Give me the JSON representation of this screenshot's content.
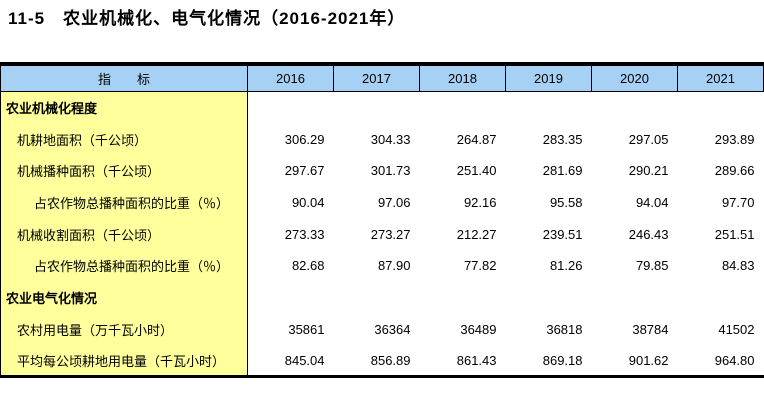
{
  "title": "11-5　农业机械化、电气化情况（2016-2021年）",
  "table": {
    "colors": {
      "header_bg": "#a7d1f4",
      "indicator_bg": "#ffff9c",
      "border": "#000000"
    },
    "header": {
      "indicator_label": "指　　标",
      "years": [
        "2016",
        "2017",
        "2018",
        "2019",
        "2020",
        "2021"
      ]
    },
    "rows": [
      {
        "label": "农业机械化程度",
        "type": "section",
        "indent": 0,
        "values": [
          "",
          "",
          "",
          "",
          "",
          ""
        ]
      },
      {
        "label": "机耕地面积（千公顷）",
        "type": "data",
        "indent": 1,
        "values": [
          "306.29",
          "304.33",
          "264.87",
          "283.35",
          "297.05",
          "293.89"
        ]
      },
      {
        "label": "机械播种面积（千公顷）",
        "type": "data",
        "indent": 1,
        "values": [
          "297.67",
          "301.73",
          "251.40",
          "281.69",
          "290.21",
          "289.66"
        ]
      },
      {
        "label": "占农作物总播种面积的比重（％）",
        "type": "data",
        "indent": 2,
        "values": [
          "90.04",
          "97.06",
          "92.16",
          "95.58",
          "94.04",
          "97.70"
        ]
      },
      {
        "label": "机械收割面积（千公顷）",
        "type": "data",
        "indent": 1,
        "values": [
          "273.33",
          "273.27",
          "212.27",
          "239.51",
          "246.43",
          "251.51"
        ]
      },
      {
        "label": "占农作物总播种面积的比重（％）",
        "type": "data",
        "indent": 2,
        "values": [
          "82.68",
          "87.90",
          "77.82",
          "81.26",
          "79.85",
          "84.83"
        ]
      },
      {
        "label": "农业电气化情况",
        "type": "section",
        "indent": 0,
        "values": [
          "",
          "",
          "",
          "",
          "",
          ""
        ]
      },
      {
        "label": "农村用电量（万千瓦小时）",
        "type": "data",
        "indent": 1,
        "values": [
          "35861",
          "36364",
          "36489",
          "36818",
          "38784",
          "41502"
        ]
      },
      {
        "label": "平均每公顷耕地用电量（千瓦小时）",
        "type": "data",
        "indent": 1,
        "values": [
          "845.04",
          "856.89",
          "861.43",
          "869.18",
          "901.62",
          "964.80"
        ]
      }
    ]
  }
}
